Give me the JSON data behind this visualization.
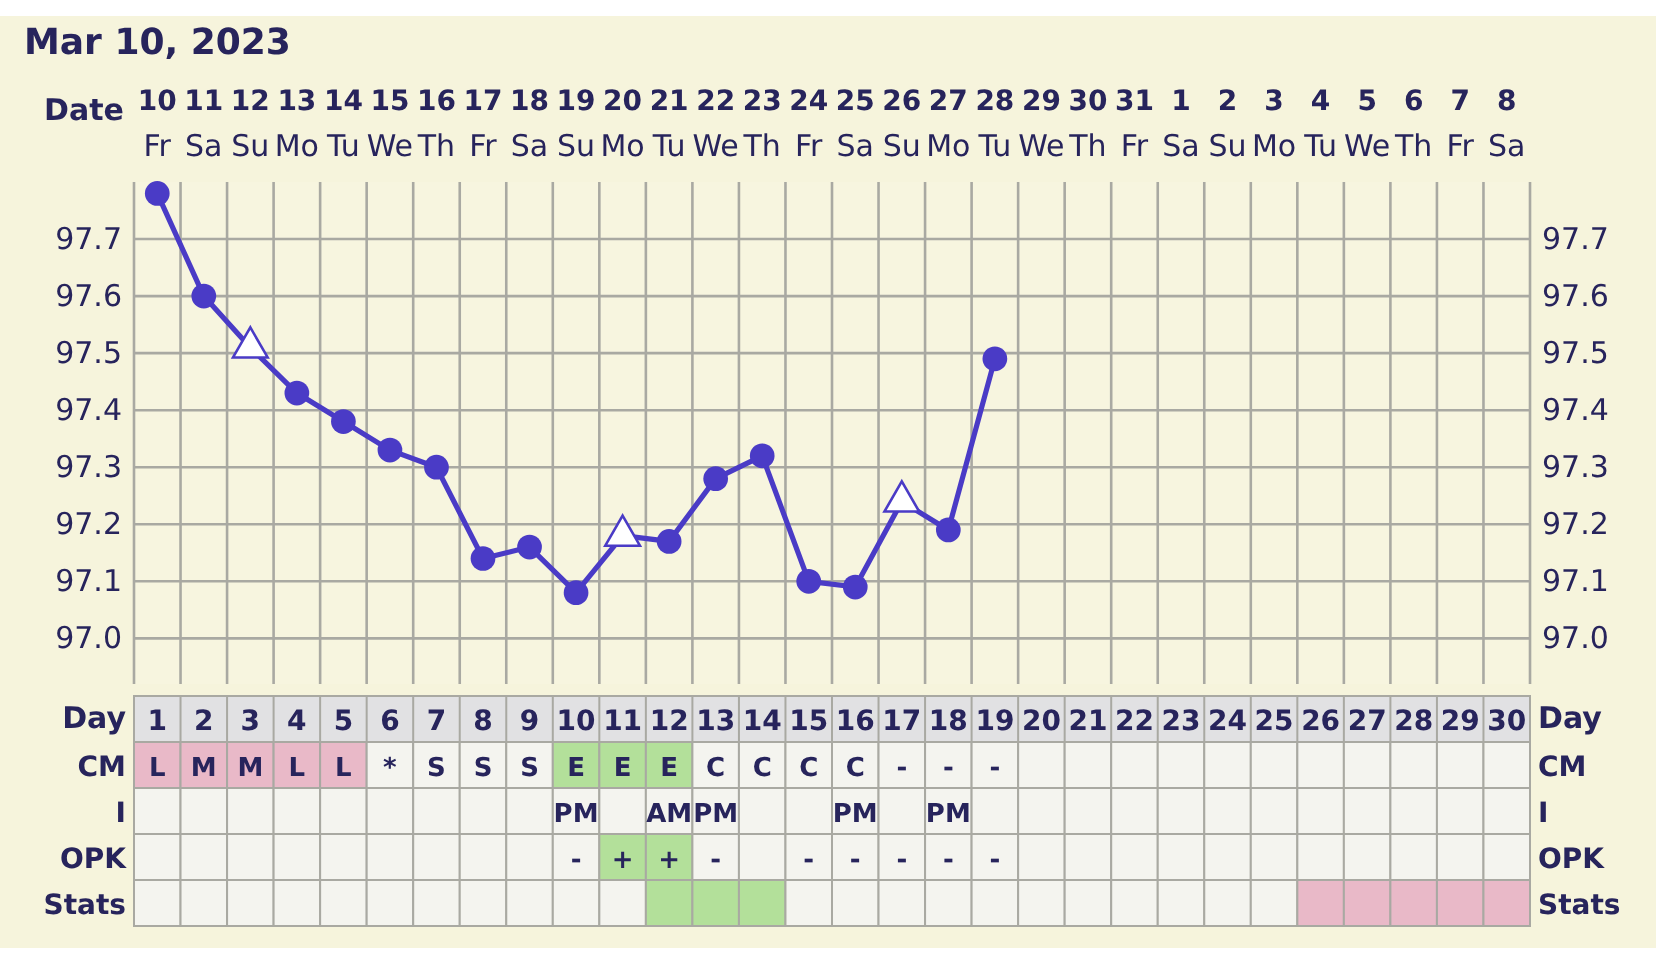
{
  "chart_data": [
    {
      "type": "line",
      "title": "Mar 10, 2023",
      "xlabel": "Day",
      "x2label": "Date",
      "x": [
        1,
        2,
        3,
        4,
        5,
        6,
        7,
        8,
        9,
        10,
        11,
        12,
        13,
        14,
        15,
        16,
        17,
        18,
        19
      ],
      "xlim": [
        0.5,
        30.5
      ],
      "xticks": [
        1,
        2,
        3,
        4,
        5,
        6,
        7,
        8,
        9,
        10,
        11,
        12,
        13,
        14,
        15,
        16,
        17,
        18,
        19,
        20,
        21,
        22,
        23,
        24,
        25,
        26,
        27,
        28,
        29,
        30
      ],
      "x2lim": [
        "2023-03-09T12:00",
        "2023-04-08T12:00"
      ],
      "x2ticks": [
        {
          "value": "2023-03-10",
          "label": "10 Fr"
        },
        {
          "value": "2023-03-11",
          "label": "11 Sa"
        },
        {
          "value": "2023-03-12",
          "label": "12 Su"
        },
        {
          "value": "2023-03-13",
          "label": "13 Mo"
        },
        {
          "value": "2023-03-14",
          "label": "14 Tu"
        },
        {
          "value": "2023-03-15",
          "label": "15 We"
        },
        {
          "value": "2023-03-16",
          "label": "16 Th"
        },
        {
          "value": "2023-03-17",
          "label": "17 Fr"
        },
        {
          "value": "2023-03-18",
          "label": "18 Sa"
        },
        {
          "value": "2023-03-19",
          "label": "19 Su"
        },
        {
          "value": "2023-03-20",
          "label": "20 Mo"
        },
        {
          "value": "2023-03-21",
          "label": "21 Tu"
        },
        {
          "value": "2023-03-22",
          "label": "22 We"
        },
        {
          "value": "2023-03-23",
          "label": "23 Th"
        },
        {
          "value": "2023-03-24",
          "label": "24 Fr"
        },
        {
          "value": "2023-03-25",
          "label": "25 Sa"
        },
        {
          "value": "2023-03-26",
          "label": "26 Su"
        },
        {
          "value": "2023-03-27",
          "label": "27 Mo"
        },
        {
          "value": "2023-03-28",
          "label": "28 Tu"
        },
        {
          "value": "2023-03-29",
          "label": "29 We"
        },
        {
          "value": "2023-03-30",
          "label": "30 Th"
        },
        {
          "value": "2023-03-31",
          "label": "31 Fr"
        },
        {
          "value": "2023-04-01",
          "label": "1 Sa"
        },
        {
          "value": "2023-04-02",
          "label": "2 Su"
        },
        {
          "value": "2023-04-03",
          "label": "3 Mo"
        },
        {
          "value": "2023-04-04",
          "label": "4 Tu"
        },
        {
          "value": "2023-04-05",
          "label": "5 We"
        },
        {
          "value": "2023-04-06",
          "label": "6 Th"
        },
        {
          "value": "2023-04-07",
          "label": "7 Fr"
        },
        {
          "value": "2023-04-08",
          "label": "8 Sa"
        }
      ],
      "series": [
        {
          "type": "line",
          "marker": "none",
          "color": "#4a3bc6",
          "values": [
            97.78,
            97.6,
            97.51,
            97.43,
            97.38,
            97.33,
            97.3,
            97.14,
            97.16,
            97.08,
            97.18,
            97.17,
            97.28,
            97.32,
            97.1,
            97.09,
            97.24,
            97.19,
            97.49
          ]
        },
        {
          "type": "scatter",
          "marker": "circle",
          "color": "#4a3bc6",
          "values": [
            97.78,
            97.6,
            null,
            97.43,
            97.38,
            97.33,
            97.3,
            97.14,
            97.16,
            97.08,
            null,
            97.17,
            97.28,
            97.32,
            97.1,
            97.09,
            null,
            97.19,
            97.49
          ]
        },
        {
          "type": "scatter",
          "marker": "triangle",
          "color": "#4a3bc6",
          "values": [
            null,
            null,
            97.51,
            null,
            null,
            null,
            null,
            null,
            null,
            null,
            97.18,
            null,
            null,
            null,
            null,
            null,
            97.24,
            null,
            null
          ]
        }
      ],
      "ylim": [
        96.92,
        97.8
      ],
      "yticks": [
        {
          "value": 97,
          "label": "97.0"
        },
        97.1,
        97.2,
        97.3,
        97.4,
        97.5,
        97.6,
        97.7
      ],
      "y2lim": [
        96.92,
        97.8
      ],
      "y2ticks": [
        {
          "value": 97,
          "label": "97.0"
        },
        97.1,
        97.2,
        97.3,
        97.4,
        97.5,
        97.6,
        97.7
      ],
      "grid": true
    },
    {
      "type": "other",
      "y_categories": [
        "CM",
        "I",
        "OPK",
        "Stats"
      ],
      "y2_categories": [
        "CM",
        "I",
        "OPK",
        "Stats"
      ],
      "cell_labels": [
        [
          "L",
          "M",
          "M",
          "L",
          "L",
          "*",
          "S",
          "S",
          "S",
          "E",
          "E",
          "E",
          "C",
          "C",
          "C",
          "C",
          "-",
          "-",
          "-",
          null,
          null,
          null,
          null,
          null,
          null,
          null,
          null,
          null,
          null,
          null
        ],
        [
          null,
          null,
          null,
          null,
          null,
          null,
          null,
          null,
          null,
          "PM",
          null,
          "AM",
          "PM",
          null,
          null,
          "PM",
          null,
          "PM",
          null,
          null,
          null,
          null,
          null,
          null,
          null,
          null,
          null,
          null,
          null,
          null
        ],
        [
          null,
          null,
          null,
          null,
          null,
          null,
          null,
          null,
          null,
          "-",
          "+",
          "+",
          "-",
          null,
          "-",
          "-",
          "-",
          "-",
          "-",
          null,
          null,
          null,
          null,
          null,
          null,
          null,
          null,
          null,
          null,
          null
        ],
        [
          null,
          null,
          null,
          null,
          null,
          null,
          null,
          null,
          null,
          null,
          null,
          null,
          null,
          null,
          null,
          null,
          null,
          null,
          null,
          null,
          null,
          null,
          null,
          null,
          null,
          null,
          null,
          null,
          null,
          null
        ]
      ],
      "colors": [
        [
          "#e9b9c8",
          "#e9b9c8",
          "#e9b9c8",
          "#e9b9c8",
          "#e9b9c8",
          null,
          null,
          null,
          null,
          "#b3e09a",
          "#b3e09a",
          "#b3e09a",
          null,
          null,
          null,
          null,
          null,
          null,
          null,
          null,
          null,
          null,
          null,
          null,
          null,
          null,
          null,
          null,
          null,
          null
        ],
        [
          null,
          null,
          null,
          null,
          null,
          null,
          null,
          null,
          null,
          null,
          null,
          null,
          null,
          null,
          null,
          null,
          null,
          null,
          null,
          null,
          null,
          null,
          null,
          null,
          null,
          null,
          null,
          null,
          null,
          null
        ],
        [
          null,
          null,
          null,
          null,
          null,
          null,
          null,
          null,
          null,
          null,
          "#b3e09a",
          "#b3e09a",
          null,
          null,
          null,
          null,
          null,
          null,
          null,
          null,
          null,
          null,
          null,
          null,
          null,
          null,
          null,
          null,
          null,
          null
        ],
        [
          null,
          null,
          null,
          null,
          null,
          null,
          null,
          null,
          null,
          null,
          null,
          "#b3e09a",
          "#b3e09a",
          "#b3e09a",
          null,
          null,
          null,
          null,
          null,
          null,
          null,
          null,
          null,
          null,
          null,
          "#e9b9c8",
          "#e9b9c8",
          "#e9b9c8",
          "#e9b9c8",
          "#e9b9c8"
        ]
      ]
    }
  ]
}
